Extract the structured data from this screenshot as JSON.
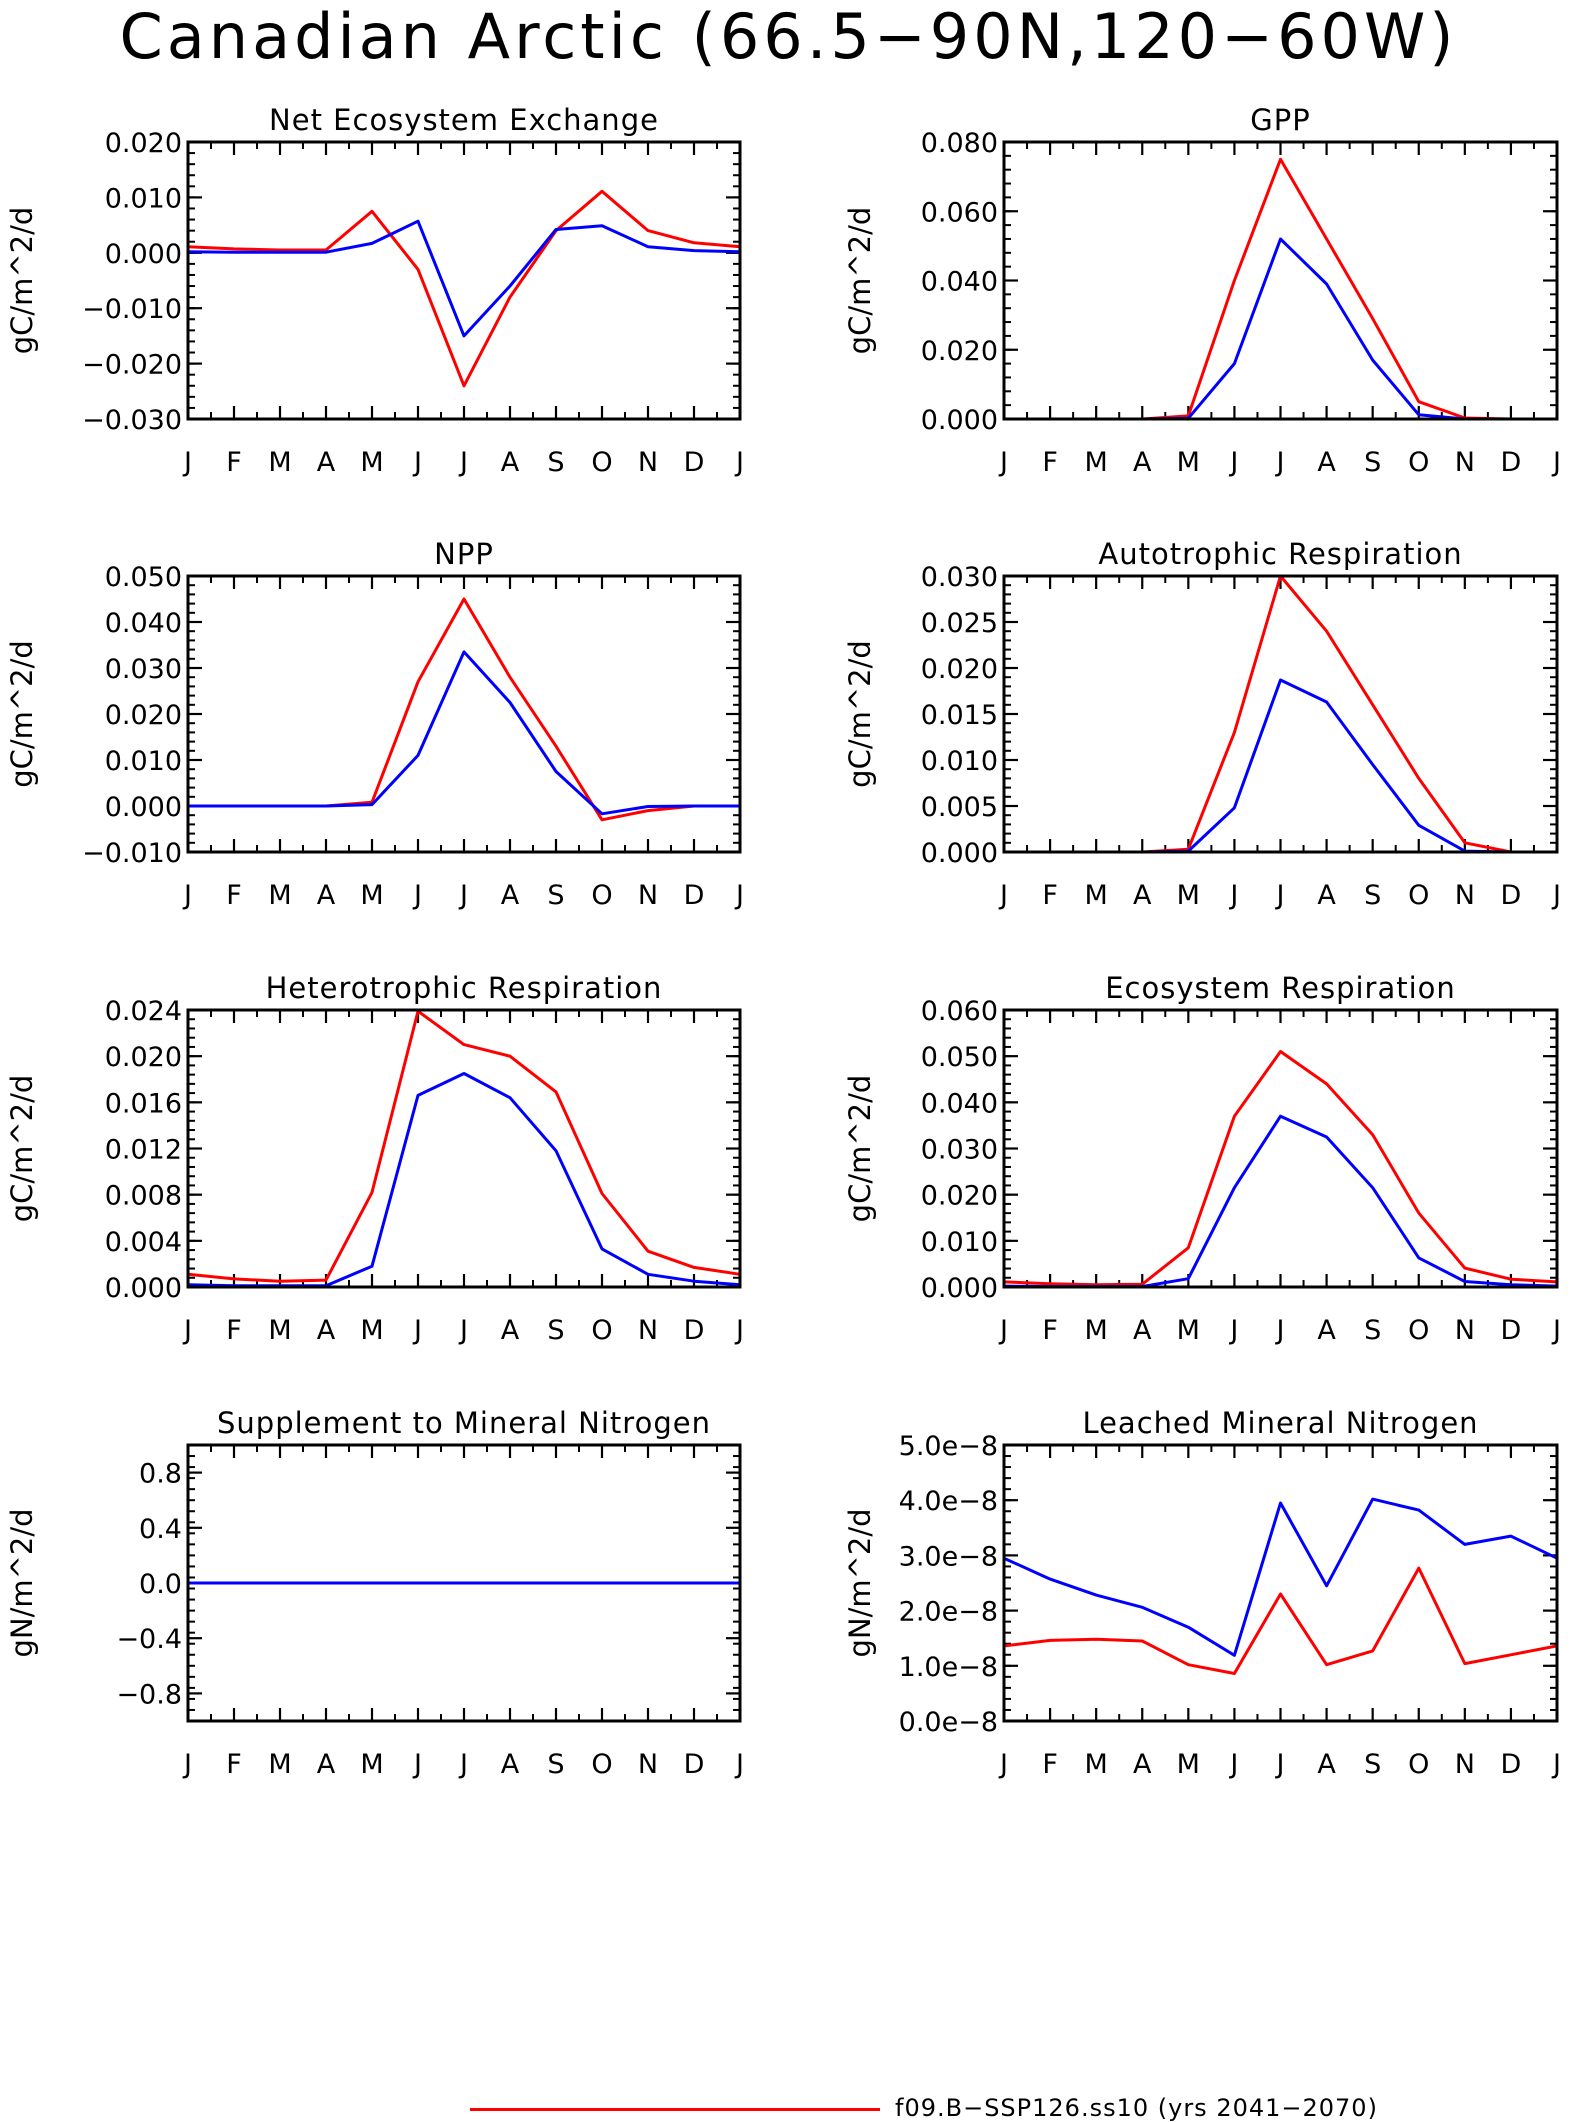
{
  "figure": {
    "title": "Canadian Arctic (66.5−90N,120−60W)",
    "legend": [
      {
        "label": "f09.B−SSP126.ss10 (yrs 2041−2070)",
        "color": "#ff0000"
      }
    ]
  },
  "chart_data": [
    {
      "type": "line",
      "title": "Net Ecosystem Exchange",
      "ylabel": "gC/m^2/d",
      "x": [
        "J",
        "F",
        "M",
        "A",
        "M",
        "J",
        "J",
        "A",
        "S",
        "O",
        "N",
        "D",
        "J"
      ],
      "ylim": [
        -0.03,
        0.02
      ],
      "yticks": [
        -0.03,
        -0.02,
        -0.01,
        0.0,
        0.01,
        0.02
      ],
      "yticklabels": [
        "−0.030",
        "−0.020",
        "−0.010",
        "0.000",
        "0.010",
        "0.020"
      ],
      "series": [
        {
          "color": "#ff0000",
          "values": [
            0.0011,
            0.0007,
            0.0005,
            0.0005,
            0.0075,
            -0.003,
            -0.024,
            -0.008,
            0.004,
            0.0111,
            0.004,
            0.0018,
            0.0011
          ]
        },
        {
          "color": "#0000ff",
          "values": [
            0.0002,
            0.0001,
            0.0001,
            0.0001,
            0.0017,
            0.0057,
            -0.015,
            -0.006,
            0.0042,
            0.0049,
            0.0011,
            0.0004,
            0.0002
          ]
        }
      ]
    },
    {
      "type": "line",
      "title": "GPP",
      "ylabel": "gC/m^2/d",
      "x": [
        "J",
        "F",
        "M",
        "A",
        "M",
        "J",
        "J",
        "A",
        "S",
        "O",
        "N",
        "D",
        "J"
      ],
      "ylim": [
        0.0,
        0.08
      ],
      "yticks": [
        0.0,
        0.02,
        0.04,
        0.06,
        0.08
      ],
      "yticklabels": [
        "0.000",
        "0.020",
        "0.040",
        "0.060",
        "0.080"
      ],
      "series": [
        {
          "color": "#ff0000",
          "values": [
            0.0,
            0.0,
            0.0,
            0.0,
            0.0009,
            0.04,
            0.075,
            0.052,
            0.029,
            0.005,
            0.0003,
            0.0,
            0.0
          ]
        },
        {
          "color": "#0000ff",
          "values": [
            0.0,
            0.0,
            0.0,
            0.0,
            0.0002,
            0.016,
            0.052,
            0.039,
            0.017,
            0.0012,
            0.0,
            0.0,
            0.0
          ]
        }
      ]
    },
    {
      "type": "line",
      "title": "NPP",
      "ylabel": "gC/m^2/d",
      "x": [
        "J",
        "F",
        "M",
        "A",
        "M",
        "J",
        "J",
        "A",
        "S",
        "O",
        "N",
        "D",
        "J"
      ],
      "ylim": [
        -0.01,
        0.05
      ],
      "yticks": [
        -0.01,
        0.0,
        0.01,
        0.02,
        0.03,
        0.04,
        0.05
      ],
      "yticklabels": [
        "−0.010",
        "0.000",
        "0.010",
        "0.020",
        "0.030",
        "0.040",
        "0.050"
      ],
      "series": [
        {
          "color": "#ff0000",
          "values": [
            0.0,
            0.0,
            0.0,
            0.0,
            0.0008,
            0.027,
            0.045,
            0.028,
            0.013,
            -0.003,
            -0.001,
            0.0,
            0.0
          ]
        },
        {
          "color": "#0000ff",
          "values": [
            0.0,
            0.0,
            0.0,
            0.0,
            0.0003,
            0.011,
            0.0335,
            0.0225,
            0.0075,
            -0.0017,
            -0.0001,
            0.0,
            0.0
          ]
        }
      ]
    },
    {
      "type": "line",
      "title": "Autotrophic Respiration",
      "ylabel": "gC/m^2/d",
      "x": [
        "J",
        "F",
        "M",
        "A",
        "M",
        "J",
        "J",
        "A",
        "S",
        "O",
        "N",
        "D",
        "J"
      ],
      "ylim": [
        0.0,
        0.03
      ],
      "yticks": [
        0.0,
        0.005,
        0.01,
        0.015,
        0.02,
        0.025,
        0.03
      ],
      "yticklabels": [
        "0.000",
        "0.005",
        "0.010",
        "0.015",
        "0.020",
        "0.025",
        "0.030"
      ],
      "series": [
        {
          "color": "#ff0000",
          "values": [
            0.0,
            0.0,
            0.0,
            0.0,
            0.0003,
            0.013,
            0.03,
            0.024,
            0.016,
            0.008,
            0.001,
            0.0,
            0.0
          ]
        },
        {
          "color": "#0000ff",
          "values": [
            0.0,
            0.0,
            0.0,
            0.0,
            0.0001,
            0.0048,
            0.0187,
            0.0163,
            0.0095,
            0.0029,
            0.0001,
            0.0,
            0.0
          ]
        }
      ]
    },
    {
      "type": "line",
      "title": "Heterotrophic Respiration",
      "ylabel": "gC/m^2/d",
      "x": [
        "J",
        "F",
        "M",
        "A",
        "M",
        "J",
        "J",
        "A",
        "S",
        "O",
        "N",
        "D",
        "J"
      ],
      "ylim": [
        0.0,
        0.024
      ],
      "yticks": [
        0.0,
        0.004,
        0.008,
        0.012,
        0.016,
        0.02,
        0.024
      ],
      "yticklabels": [
        "0.000",
        "0.004",
        "0.008",
        "0.012",
        "0.016",
        "0.020",
        "0.024"
      ],
      "series": [
        {
          "color": "#ff0000",
          "values": [
            0.0011,
            0.0007,
            0.0005,
            0.0006,
            0.0082,
            0.0239,
            0.021,
            0.02,
            0.0169,
            0.0081,
            0.0031,
            0.0017,
            0.0011
          ]
        },
        {
          "color": "#0000ff",
          "values": [
            0.0002,
            0.0001,
            0.0001,
            0.0001,
            0.0018,
            0.0166,
            0.0185,
            0.0164,
            0.0118,
            0.0033,
            0.0011,
            0.0005,
            0.0002
          ]
        }
      ]
    },
    {
      "type": "line",
      "title": "Ecosystem Respiration",
      "ylabel": "gC/m^2/d",
      "x": [
        "J",
        "F",
        "M",
        "A",
        "M",
        "J",
        "J",
        "A",
        "S",
        "O",
        "N",
        "D",
        "J"
      ],
      "ylim": [
        0.0,
        0.06
      ],
      "yticks": [
        0.0,
        0.01,
        0.02,
        0.03,
        0.04,
        0.05,
        0.06
      ],
      "yticklabels": [
        "0.000",
        "0.010",
        "0.020",
        "0.030",
        "0.040",
        "0.050",
        "0.060"
      ],
      "series": [
        {
          "color": "#ff0000",
          "values": [
            0.0011,
            0.0007,
            0.0005,
            0.0006,
            0.0085,
            0.037,
            0.051,
            0.044,
            0.033,
            0.016,
            0.0041,
            0.0017,
            0.0011
          ]
        },
        {
          "color": "#0000ff",
          "values": [
            0.0002,
            0.0001,
            0.0001,
            0.0001,
            0.0018,
            0.0215,
            0.037,
            0.0325,
            0.0215,
            0.0063,
            0.0012,
            0.0005,
            0.0002
          ]
        }
      ]
    },
    {
      "type": "line",
      "title": "Supplement to Mineral Nitrogen",
      "ylabel": "gN/m^2/d",
      "x": [
        "J",
        "F",
        "M",
        "A",
        "M",
        "J",
        "J",
        "A",
        "S",
        "O",
        "N",
        "D",
        "J"
      ],
      "ylim": [
        -1.0,
        1.0
      ],
      "yticks": [
        -0.8,
        -0.4,
        0.0,
        0.4,
        0.8
      ],
      "yticklabels": [
        "−0.8",
        "−0.4",
        "0.0",
        "0.4",
        "0.8"
      ],
      "series": [
        {
          "color": "#ff0000",
          "values": [
            0,
            0,
            0,
            0,
            0,
            0,
            0,
            0,
            0,
            0,
            0,
            0,
            0
          ]
        },
        {
          "color": "#0000ff",
          "values": [
            0,
            0,
            0,
            0,
            0,
            0,
            0,
            0,
            0,
            0,
            0,
            0,
            0
          ]
        }
      ]
    },
    {
      "type": "line",
      "title": "Leached Mineral Nitrogen",
      "ylabel": "gN/m^2/d",
      "x": [
        "J",
        "F",
        "M",
        "A",
        "M",
        "J",
        "J",
        "A",
        "S",
        "O",
        "N",
        "D",
        "J"
      ],
      "ylim": [
        0.0,
        5e-08
      ],
      "yticks": [
        0.0,
        1e-08,
        2e-08,
        3e-08,
        4e-08,
        5e-08
      ],
      "yticklabels": [
        "0.0e−8",
        "1.0e−8",
        "2.0e−8",
        "3.0e−8",
        "4.0e−8",
        "5.0e−8"
      ],
      "series": [
        {
          "color": "#ff0000",
          "values": [
            1.36e-08,
            1.46e-08,
            1.48e-08,
            1.45e-08,
            1.02e-08,
            8.6e-09,
            2.3e-08,
            1.02e-08,
            1.27e-08,
            2.77e-08,
            1.04e-08,
            1.2e-08,
            1.36e-08
          ]
        },
        {
          "color": "#0000ff",
          "values": [
            2.95e-08,
            2.57e-08,
            2.28e-08,
            2.06e-08,
            1.7e-08,
            1.19e-08,
            3.95e-08,
            2.45e-08,
            4.02e-08,
            3.82e-08,
            3.2e-08,
            3.35e-08,
            2.95e-08
          ]
        }
      ]
    }
  ]
}
